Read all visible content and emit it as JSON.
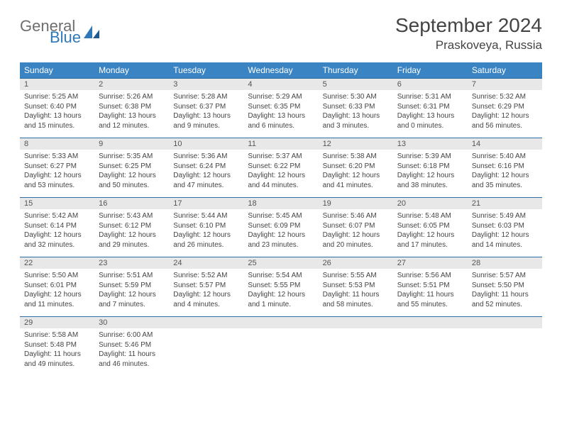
{
  "logo": {
    "text_general": "General",
    "text_blue": "Blue"
  },
  "title": "September 2024",
  "location": "Praskoveya, Russia",
  "colors": {
    "header_bg": "#3a84c4",
    "header_fg": "#ffffff",
    "strip_bg": "#e8e8e8",
    "strip_border": "#2e6da4",
    "text": "#444444",
    "logo_gray": "#6e6e6e",
    "logo_blue": "#2e78b7",
    "page_bg": "#ffffff"
  },
  "layout": {
    "cols": 7,
    "rows": 5,
    "first_weekday": "Sunday"
  },
  "weekdays": [
    "Sunday",
    "Monday",
    "Tuesday",
    "Wednesday",
    "Thursday",
    "Friday",
    "Saturday"
  ],
  "days": [
    {
      "n": 1,
      "sunrise": "5:25 AM",
      "sunset": "6:40 PM",
      "daylight": "13 hours and 15 minutes."
    },
    {
      "n": 2,
      "sunrise": "5:26 AM",
      "sunset": "6:38 PM",
      "daylight": "13 hours and 12 minutes."
    },
    {
      "n": 3,
      "sunrise": "5:28 AM",
      "sunset": "6:37 PM",
      "daylight": "13 hours and 9 minutes."
    },
    {
      "n": 4,
      "sunrise": "5:29 AM",
      "sunset": "6:35 PM",
      "daylight": "13 hours and 6 minutes."
    },
    {
      "n": 5,
      "sunrise": "5:30 AM",
      "sunset": "6:33 PM",
      "daylight": "13 hours and 3 minutes."
    },
    {
      "n": 6,
      "sunrise": "5:31 AM",
      "sunset": "6:31 PM",
      "daylight": "13 hours and 0 minutes."
    },
    {
      "n": 7,
      "sunrise": "5:32 AM",
      "sunset": "6:29 PM",
      "daylight": "12 hours and 56 minutes."
    },
    {
      "n": 8,
      "sunrise": "5:33 AM",
      "sunset": "6:27 PM",
      "daylight": "12 hours and 53 minutes."
    },
    {
      "n": 9,
      "sunrise": "5:35 AM",
      "sunset": "6:25 PM",
      "daylight": "12 hours and 50 minutes."
    },
    {
      "n": 10,
      "sunrise": "5:36 AM",
      "sunset": "6:24 PM",
      "daylight": "12 hours and 47 minutes."
    },
    {
      "n": 11,
      "sunrise": "5:37 AM",
      "sunset": "6:22 PM",
      "daylight": "12 hours and 44 minutes."
    },
    {
      "n": 12,
      "sunrise": "5:38 AM",
      "sunset": "6:20 PM",
      "daylight": "12 hours and 41 minutes."
    },
    {
      "n": 13,
      "sunrise": "5:39 AM",
      "sunset": "6:18 PM",
      "daylight": "12 hours and 38 minutes."
    },
    {
      "n": 14,
      "sunrise": "5:40 AM",
      "sunset": "6:16 PM",
      "daylight": "12 hours and 35 minutes."
    },
    {
      "n": 15,
      "sunrise": "5:42 AM",
      "sunset": "6:14 PM",
      "daylight": "12 hours and 32 minutes."
    },
    {
      "n": 16,
      "sunrise": "5:43 AM",
      "sunset": "6:12 PM",
      "daylight": "12 hours and 29 minutes."
    },
    {
      "n": 17,
      "sunrise": "5:44 AM",
      "sunset": "6:10 PM",
      "daylight": "12 hours and 26 minutes."
    },
    {
      "n": 18,
      "sunrise": "5:45 AM",
      "sunset": "6:09 PM",
      "daylight": "12 hours and 23 minutes."
    },
    {
      "n": 19,
      "sunrise": "5:46 AM",
      "sunset": "6:07 PM",
      "daylight": "12 hours and 20 minutes."
    },
    {
      "n": 20,
      "sunrise": "5:48 AM",
      "sunset": "6:05 PM",
      "daylight": "12 hours and 17 minutes."
    },
    {
      "n": 21,
      "sunrise": "5:49 AM",
      "sunset": "6:03 PM",
      "daylight": "12 hours and 14 minutes."
    },
    {
      "n": 22,
      "sunrise": "5:50 AM",
      "sunset": "6:01 PM",
      "daylight": "12 hours and 11 minutes."
    },
    {
      "n": 23,
      "sunrise": "5:51 AM",
      "sunset": "5:59 PM",
      "daylight": "12 hours and 7 minutes."
    },
    {
      "n": 24,
      "sunrise": "5:52 AM",
      "sunset": "5:57 PM",
      "daylight": "12 hours and 4 minutes."
    },
    {
      "n": 25,
      "sunrise": "5:54 AM",
      "sunset": "5:55 PM",
      "daylight": "12 hours and 1 minute."
    },
    {
      "n": 26,
      "sunrise": "5:55 AM",
      "sunset": "5:53 PM",
      "daylight": "11 hours and 58 minutes."
    },
    {
      "n": 27,
      "sunrise": "5:56 AM",
      "sunset": "5:51 PM",
      "daylight": "11 hours and 55 minutes."
    },
    {
      "n": 28,
      "sunrise": "5:57 AM",
      "sunset": "5:50 PM",
      "daylight": "11 hours and 52 minutes."
    },
    {
      "n": 29,
      "sunrise": "5:58 AM",
      "sunset": "5:48 PM",
      "daylight": "11 hours and 49 minutes."
    },
    {
      "n": 30,
      "sunrise": "6:00 AM",
      "sunset": "5:46 PM",
      "daylight": "11 hours and 46 minutes."
    }
  ],
  "labels": {
    "sunrise": "Sunrise:",
    "sunset": "Sunset:",
    "daylight": "Daylight:"
  }
}
